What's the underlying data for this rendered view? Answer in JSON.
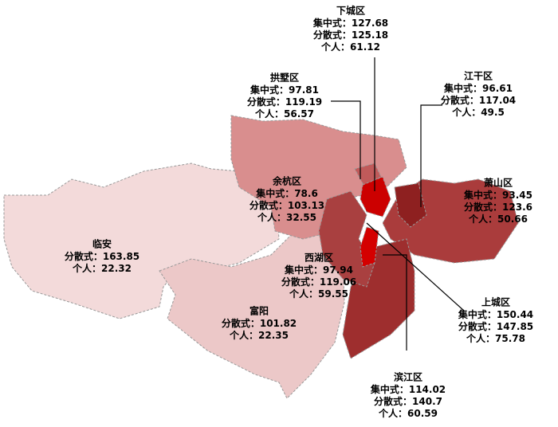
{
  "districts": [
    {
      "name": "下城区",
      "rows": [
        {
          "label": "集中式：",
          "value": 127.68
        },
        {
          "label": "分散式：",
          "value": 125.18
        },
        {
          "label": "个人：",
          "value": 61.12
        }
      ]
    },
    {
      "name": "拱墅区",
      "rows": [
        {
          "label": "集中式：",
          "value": 97.81
        },
        {
          "label": "分散式：",
          "value": 119.19
        },
        {
          "label": "个人：",
          "value": 56.57
        }
      ]
    },
    {
      "name": "江干区",
      "rows": [
        {
          "label": "集中式：",
          "value": 96.61
        },
        {
          "label": "分散式：",
          "value": 117.04
        },
        {
          "label": "个人：",
          "value": 49.5
        }
      ]
    },
    {
      "name": "余杭区",
      "rows": [
        {
          "label": "集中式：",
          "value": 78.6
        },
        {
          "label": "分散式：",
          "value": 103.13
        },
        {
          "label": "个人：",
          "value": 32.55
        }
      ]
    },
    {
      "name": "萧山区",
      "rows": [
        {
          "label": "集中式：",
          "value": 93.45
        },
        {
          "label": "分散式：",
          "value": 123.6
        },
        {
          "label": "个人：",
          "value": 50.66
        }
      ]
    },
    {
      "name": "临安",
      "rows": [
        {
          "label": "分散式：",
          "value": 163.85
        },
        {
          "label": "个人：",
          "value": 22.32
        }
      ]
    },
    {
      "name": "西湖区",
      "rows": [
        {
          "label": "集中式：",
          "value": 97.94
        },
        {
          "label": "分散式：",
          "value": 119.06
        },
        {
          "label": "个人：",
          "value": 59.55
        }
      ]
    },
    {
      "name": "富阳",
      "rows": [
        {
          "label": "分散式：",
          "value": 101.82
        },
        {
          "label": "个人：",
          "value": 22.35
        }
      ]
    },
    {
      "name": "上城区",
      "rows": [
        {
          "label": "集中式：",
          "value": 150.44
        },
        {
          "label": "分散式：",
          "value": 147.85
        },
        {
          "label": "个人：",
          "value": 75.78
        }
      ]
    },
    {
      "name": "滨江区",
      "rows": [
        {
          "label": "集中式：",
          "value": 114.02
        },
        {
          "label": "分散式：",
          "value": 140.7
        },
        {
          "label": "个人：",
          "value": 60.59
        }
      ]
    }
  ]
}
